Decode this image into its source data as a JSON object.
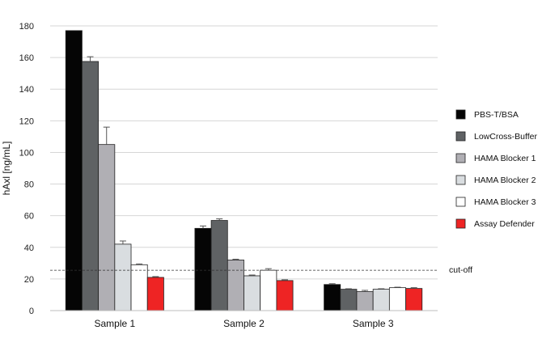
{
  "chart_data": {
    "type": "bar",
    "title": "",
    "xlabel": "",
    "ylabel": "hAxl [ng/mL]",
    "ylim": [
      0,
      180
    ],
    "yticks": [
      0,
      20,
      40,
      60,
      80,
      100,
      120,
      140,
      160,
      180
    ],
    "categories": [
      "Sample 1",
      "Sample 2",
      "Sample 3"
    ],
    "series": [
      {
        "name": "PBS-T/BSA",
        "color": "#050505",
        "values": [
          177,
          52,
          16.5
        ],
        "errors": [
          0,
          1.5,
          0.5
        ]
      },
      {
        "name": "LowCross-Buffer",
        "color": "#5f6264",
        "values": [
          157.5,
          57,
          13.5
        ],
        "errors": [
          3,
          1,
          0.3
        ]
      },
      {
        "name": "HAMA Blocker 1",
        "color": "#b0afb4",
        "values": [
          105,
          32,
          12
        ],
        "errors": [
          11,
          0.5,
          0.8
        ]
      },
      {
        "name": "HAMA Blocker 2",
        "color": "#d9dde0",
        "values": [
          42,
          22,
          13.5
        ],
        "errors": [
          2,
          0.5,
          0.3
        ]
      },
      {
        "name": "HAMA Blocker 3",
        "color": "#ffffff",
        "values": [
          29,
          25.5,
          14.5
        ],
        "errors": [
          0.5,
          1,
          0.3
        ]
      },
      {
        "name": "Assay Defender",
        "color": "#ee2424",
        "values": [
          21,
          19,
          14
        ],
        "errors": [
          0.5,
          0.5,
          0.5
        ]
      }
    ],
    "reference_line": {
      "value": 25.5,
      "label": "cut-off",
      "style": "dashed"
    },
    "grid": true,
    "legend_position": "right"
  }
}
